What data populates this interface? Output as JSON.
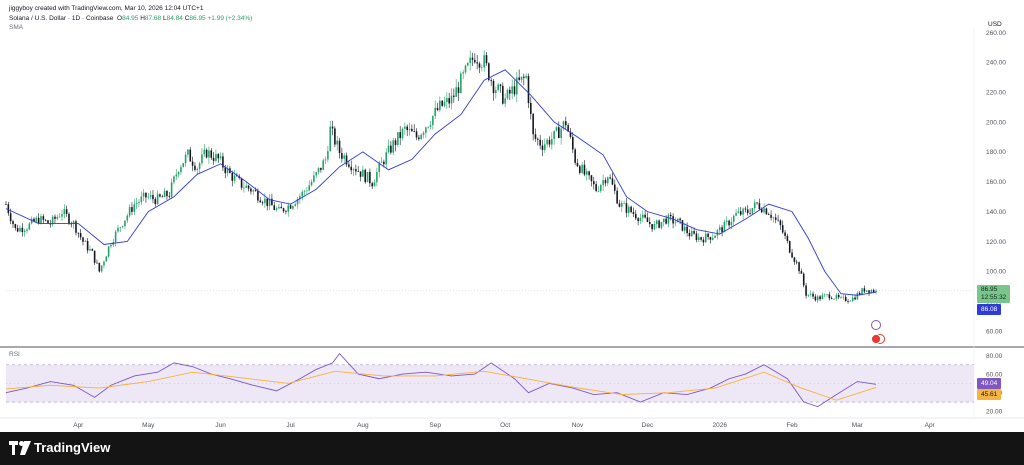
{
  "header": {
    "credit": "jiggyboy created with TradingView.com, Mar 10, 2026 12:04 UTC+1",
    "symbol": "Solana / U.S. Dollar · 1D · Coinbase",
    "o_label": "O",
    "o_val": "84.95",
    "h_label": "H",
    "h_val": "87.68",
    "l_label": "L",
    "l_val": "84.84",
    "c_label": "C",
    "c_val": "86.95",
    "change": "+1.99 (+2.34%)",
    "indicator": "SMA"
  },
  "currency": "USD",
  "price_badge": {
    "price": "86.95",
    "countdown": "12:55:32",
    "sma": "86.08"
  },
  "rsi_badge": {
    "rsi": "49.04",
    "ma": "45.61"
  },
  "footer": {
    "brand": "TradingView"
  },
  "colors": {
    "up": "#26a269",
    "down": "#131722",
    "sma": "#2e3bd6",
    "rsi": "#7e57c2",
    "rsi_ma": "#f5b342",
    "rsi_band": "#ede7f6",
    "accent_badge": "#2e3bd6"
  },
  "chart_data": [
    {
      "type": "candlestick",
      "title": "Solana / U.S. Dollar · 1D · Coinbase",
      "ylim": [
        50,
        263
      ],
      "yticks": [
        "60.00",
        "80.00",
        "100.00",
        "120.00",
        "140.00",
        "160.00",
        "180.00",
        "200.00",
        "220.00",
        "240.00",
        "260.00"
      ],
      "ytick_values": [
        60,
        80,
        100,
        120,
        140,
        160,
        180,
        200,
        220,
        240,
        260
      ],
      "xticks": [
        "Apr",
        "May",
        "Jun",
        "Jul",
        "Aug",
        "Sep",
        "Oct",
        "Nov",
        "Dec",
        "2026",
        "Feb",
        "Mar",
        "Apr"
      ],
      "x_start": "2025-03-01",
      "x_end": "2026-04-20",
      "xtick_dates": [
        "2025-04-01",
        "2025-05-01",
        "2025-06-01",
        "2025-07-01",
        "2025-08-01",
        "2025-09-01",
        "2025-10-01",
        "2025-11-01",
        "2025-12-01",
        "2026-01-01",
        "2026-02-01",
        "2026-03-01",
        "2026-04-01"
      ],
      "close_series": {
        "dates": [
          "2025-03-01",
          "2025-03-05",
          "2025-03-10",
          "2025-03-15",
          "2025-03-20",
          "2025-03-25",
          "2025-03-30",
          "2025-04-03",
          "2025-04-07",
          "2025-04-10",
          "2025-04-15",
          "2025-04-20",
          "2025-04-25",
          "2025-04-30",
          "2025-05-05",
          "2025-05-10",
          "2025-05-14",
          "2025-05-18",
          "2025-05-22",
          "2025-05-26",
          "2025-05-31",
          "2025-06-05",
          "2025-06-10",
          "2025-06-14",
          "2025-06-18",
          "2025-06-22",
          "2025-06-26",
          "2025-07-01",
          "2025-07-06",
          "2025-07-11",
          "2025-07-16",
          "2025-07-18",
          "2025-07-22",
          "2025-07-27",
          "2025-08-01",
          "2025-08-05",
          "2025-08-10",
          "2025-08-14",
          "2025-08-19",
          "2025-08-24",
          "2025-08-29",
          "2025-09-03",
          "2025-09-08",
          "2025-09-13",
          "2025-09-18",
          "2025-09-22",
          "2025-09-26",
          "2025-10-01",
          "2025-10-06",
          "2025-10-10",
          "2025-10-13",
          "2025-10-17",
          "2025-10-22",
          "2025-10-27",
          "2025-10-31",
          "2025-11-04",
          "2025-11-09",
          "2025-11-14",
          "2025-11-19",
          "2025-11-24",
          "2025-11-29",
          "2025-12-04",
          "2025-12-09",
          "2025-12-14",
          "2025-12-19",
          "2025-12-24",
          "2025-12-29",
          "2026-01-03",
          "2026-01-08",
          "2026-01-13",
          "2026-01-17",
          "2026-01-22",
          "2026-01-27",
          "2026-01-31",
          "2026-02-04",
          "2026-02-07",
          "2026-02-12",
          "2026-02-17",
          "2026-02-22",
          "2026-02-27",
          "2026-03-04",
          "2026-03-09"
        ],
        "values": [
          145,
          128,
          130,
          135,
          132,
          140,
          132,
          120,
          112,
          100,
          120,
          133,
          145,
          150,
          148,
          152,
          170,
          178,
          170,
          180,
          175,
          165,
          158,
          155,
          150,
          145,
          140,
          145,
          152,
          162,
          175,
          195,
          180,
          172,
          165,
          160,
          175,
          185,
          195,
          190,
          200,
          210,
          215,
          230,
          245,
          240,
          225,
          215,
          225,
          230,
          190,
          185,
          190,
          200,
          175,
          165,
          155,
          165,
          145,
          140,
          135,
          130,
          135,
          133,
          125,
          122,
          124,
          130,
          138,
          140,
          145,
          140,
          130,
          115,
          102,
          85,
          82,
          84,
          81,
          82,
          88,
          86.95
        ]
      },
      "sma_series": {
        "dates": [
          "2025-03-01",
          "2025-03-15",
          "2025-04-01",
          "2025-04-12",
          "2025-04-22",
          "2025-05-01",
          "2025-05-12",
          "2025-05-22",
          "2025-06-01",
          "2025-06-12",
          "2025-06-22",
          "2025-07-01",
          "2025-07-12",
          "2025-07-22",
          "2025-08-01",
          "2025-08-12",
          "2025-08-22",
          "2025-09-01",
          "2025-09-12",
          "2025-09-22",
          "2025-10-01",
          "2025-10-12",
          "2025-10-22",
          "2025-11-01",
          "2025-11-12",
          "2025-11-22",
          "2025-12-01",
          "2025-12-12",
          "2025-12-22",
          "2026-01-01",
          "2026-01-12",
          "2026-01-22",
          "2026-02-01",
          "2026-02-08",
          "2026-02-15",
          "2026-02-22",
          "2026-03-01",
          "2026-03-09"
        ],
        "values": [
          142,
          132,
          132,
          118,
          120,
          140,
          150,
          165,
          172,
          160,
          148,
          145,
          155,
          170,
          180,
          168,
          175,
          192,
          205,
          228,
          235,
          218,
          200,
          190,
          178,
          150,
          140,
          135,
          128,
          125,
          135,
          145,
          140,
          122,
          100,
          85,
          84,
          86.08
        ]
      },
      "last_price": 86.95,
      "last_sma": 86.08
    },
    {
      "type": "line",
      "title": "RSI",
      "ylim": [
        15,
        88
      ],
      "yticks": [
        "20.00",
        "40.00",
        "60.00",
        "80.00"
      ],
      "ytick_values": [
        20,
        40,
        60,
        80
      ],
      "bands": [
        30,
        70
      ],
      "series": [
        {
          "name": "RSI",
          "dates": [
            "2025-03-01",
            "2025-03-10",
            "2025-03-20",
            "2025-03-30",
            "2025-04-08",
            "2025-04-15",
            "2025-04-25",
            "2025-05-05",
            "2025-05-12",
            "2025-05-20",
            "2025-05-28",
            "2025-06-05",
            "2025-06-15",
            "2025-06-25",
            "2025-07-05",
            "2025-07-12",
            "2025-07-19",
            "2025-07-22",
            "2025-07-30",
            "2025-08-08",
            "2025-08-18",
            "2025-08-28",
            "2025-09-08",
            "2025-09-18",
            "2025-09-25",
            "2025-10-05",
            "2025-10-11",
            "2025-10-20",
            "2025-10-30",
            "2025-11-08",
            "2025-11-18",
            "2025-11-28",
            "2025-12-08",
            "2025-12-18",
            "2025-12-28",
            "2026-01-05",
            "2026-01-12",
            "2026-01-20",
            "2026-01-30",
            "2026-02-06",
            "2026-02-12",
            "2026-02-20",
            "2026-03-01",
            "2026-03-09"
          ],
          "values": [
            40,
            45,
            52,
            48,
            35,
            48,
            58,
            62,
            72,
            68,
            60,
            55,
            48,
            42,
            55,
            65,
            72,
            82,
            60,
            55,
            60,
            62,
            58,
            60,
            72,
            55,
            40,
            50,
            45,
            38,
            40,
            30,
            40,
            38,
            45,
            55,
            60,
            70,
            55,
            30,
            25,
            38,
            52,
            49.04
          ]
        },
        {
          "name": "RSI MA",
          "dates": [
            "2025-03-01",
            "2025-03-20",
            "2025-04-10",
            "2025-05-01",
            "2025-05-20",
            "2025-06-10",
            "2025-06-30",
            "2025-07-20",
            "2025-08-10",
            "2025-09-01",
            "2025-09-22",
            "2025-10-10",
            "2025-10-30",
            "2025-11-20",
            "2025-12-10",
            "2025-12-30",
            "2026-01-20",
            "2026-02-05",
            "2026-02-20",
            "2026-03-09"
          ],
          "values": [
            44,
            48,
            45,
            52,
            62,
            56,
            50,
            63,
            58,
            58,
            63,
            55,
            46,
            38,
            40,
            45,
            62,
            45,
            32,
            45.61
          ]
        }
      ],
      "last_rsi": 49.04,
      "last_ma": 45.61
    }
  ]
}
